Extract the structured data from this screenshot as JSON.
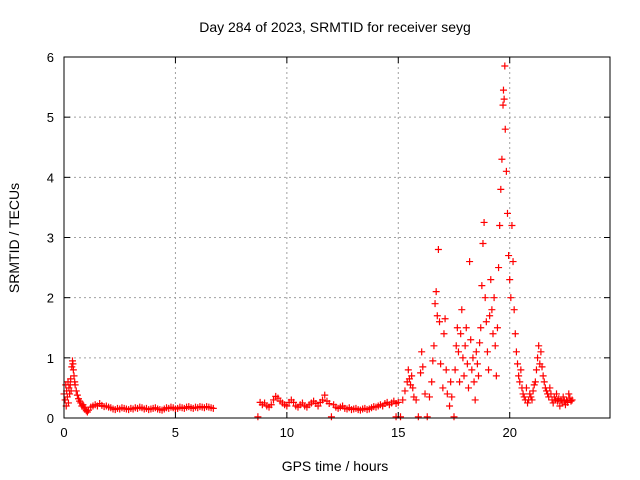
{
  "chart_data": {
    "type": "scatter",
    "title": "Day 284 of 2023, SRMTID for receiver seyg",
    "xlabel": "GPS time / hours",
    "ylabel": "SRMTID / TECUs",
    "xlim": [
      0,
      24.5
    ],
    "ylim": [
      0,
      6
    ],
    "xticks": [
      0,
      5,
      10,
      15,
      20
    ],
    "xtick_labels": [
      "0",
      "5",
      "10",
      "15",
      "20"
    ],
    "yticks": [
      0,
      1,
      2,
      3,
      4,
      5,
      6
    ],
    "ytick_labels": [
      "0",
      "1",
      "2",
      "3",
      "4",
      "5",
      "6"
    ],
    "grid": true,
    "marker": "+",
    "color": "#ff0000",
    "series": [
      {
        "name": "SRMTID",
        "points": [
          [
            0.0,
            0.4
          ],
          [
            0.05,
            0.3
          ],
          [
            0.08,
            0.55
          ],
          [
            0.1,
            0.2
          ],
          [
            0.12,
            0.45
          ],
          [
            0.15,
            0.35
          ],
          [
            0.18,
            0.6
          ],
          [
            0.2,
            0.25
          ],
          [
            0.22,
            0.5
          ],
          [
            0.25,
            0.4
          ],
          [
            0.28,
            0.55
          ],
          [
            0.3,
            0.65
          ],
          [
            0.32,
            0.45
          ],
          [
            0.35,
            0.85
          ],
          [
            0.38,
            0.95
          ],
          [
            0.4,
            0.9
          ],
          [
            0.42,
            0.8
          ],
          [
            0.45,
            0.7
          ],
          [
            0.48,
            0.6
          ],
          [
            0.5,
            0.55
          ],
          [
            0.55,
            0.45
          ],
          [
            0.6,
            0.38
          ],
          [
            0.65,
            0.32
          ],
          [
            0.7,
            0.28
          ],
          [
            0.75,
            0.25
          ],
          [
            0.8,
            0.2
          ],
          [
            0.85,
            0.22
          ],
          [
            0.9,
            0.18
          ],
          [
            0.95,
            0.15
          ],
          [
            1.0,
            0.12
          ],
          [
            1.05,
            0.1
          ],
          [
            1.1,
            0.13
          ],
          [
            1.2,
            0.18
          ],
          [
            1.3,
            0.2
          ],
          [
            1.4,
            0.22
          ],
          [
            1.5,
            0.2
          ],
          [
            1.6,
            0.24
          ],
          [
            1.7,
            0.21
          ],
          [
            1.8,
            0.19
          ],
          [
            1.9,
            0.2
          ],
          [
            2.0,
            0.18
          ],
          [
            2.1,
            0.17
          ],
          [
            2.2,
            0.15
          ],
          [
            2.3,
            0.14
          ],
          [
            2.4,
            0.16
          ],
          [
            2.5,
            0.15
          ],
          [
            2.6,
            0.17
          ],
          [
            2.7,
            0.16
          ],
          [
            2.8,
            0.15
          ],
          [
            2.9,
            0.14
          ],
          [
            3.0,
            0.16
          ],
          [
            3.1,
            0.15
          ],
          [
            3.2,
            0.17
          ],
          [
            3.3,
            0.16
          ],
          [
            3.4,
            0.18
          ],
          [
            3.5,
            0.17
          ],
          [
            3.6,
            0.15
          ],
          [
            3.7,
            0.16
          ],
          [
            3.8,
            0.14
          ],
          [
            3.9,
            0.15
          ],
          [
            4.0,
            0.16
          ],
          [
            4.1,
            0.17
          ],
          [
            4.2,
            0.15
          ],
          [
            4.3,
            0.14
          ],
          [
            4.4,
            0.13
          ],
          [
            4.5,
            0.15
          ],
          [
            4.6,
            0.17
          ],
          [
            4.7,
            0.16
          ],
          [
            4.8,
            0.18
          ],
          [
            4.9,
            0.17
          ],
          [
            5.0,
            0.15
          ],
          [
            5.1,
            0.16
          ],
          [
            5.2,
            0.18
          ],
          [
            5.3,
            0.17
          ],
          [
            5.4,
            0.16
          ],
          [
            5.5,
            0.18
          ],
          [
            5.6,
            0.19
          ],
          [
            5.7,
            0.17
          ],
          [
            5.8,
            0.16
          ],
          [
            5.9,
            0.18
          ],
          [
            6.0,
            0.17
          ],
          [
            6.1,
            0.19
          ],
          [
            6.2,
            0.18
          ],
          [
            6.3,
            0.17
          ],
          [
            6.4,
            0.19
          ],
          [
            6.5,
            0.18
          ],
          [
            6.6,
            0.17
          ],
          [
            6.7,
            0.16
          ],
          [
            8.7,
            0.02
          ],
          [
            8.8,
            0.26
          ],
          [
            8.9,
            0.22
          ],
          [
            9.0,
            0.25
          ],
          [
            9.1,
            0.2
          ],
          [
            9.2,
            0.18
          ],
          [
            9.3,
            0.22
          ],
          [
            9.4,
            0.3
          ],
          [
            9.5,
            0.36
          ],
          [
            9.6,
            0.33
          ],
          [
            9.7,
            0.28
          ],
          [
            9.8,
            0.25
          ],
          [
            9.9,
            0.22
          ],
          [
            10.0,
            0.2
          ],
          [
            10.1,
            0.26
          ],
          [
            10.2,
            0.3
          ],
          [
            10.3,
            0.26
          ],
          [
            10.4,
            0.2
          ],
          [
            10.5,
            0.18
          ],
          [
            10.6,
            0.22
          ],
          [
            10.7,
            0.25
          ],
          [
            10.8,
            0.2
          ],
          [
            10.9,
            0.18
          ],
          [
            11.0,
            0.22
          ],
          [
            11.1,
            0.25
          ],
          [
            11.2,
            0.28
          ],
          [
            11.3,
            0.24
          ],
          [
            11.4,
            0.2
          ],
          [
            11.5,
            0.26
          ],
          [
            11.6,
            0.3
          ],
          [
            11.7,
            0.38
          ],
          [
            11.8,
            0.28
          ],
          [
            11.9,
            0.24
          ],
          [
            12.0,
            0.02
          ],
          [
            12.1,
            0.22
          ],
          [
            12.2,
            0.18
          ],
          [
            12.3,
            0.16
          ],
          [
            12.4,
            0.18
          ],
          [
            12.5,
            0.2
          ],
          [
            12.6,
            0.16
          ],
          [
            12.7,
            0.15
          ],
          [
            12.8,
            0.17
          ],
          [
            12.9,
            0.14
          ],
          [
            13.0,
            0.15
          ],
          [
            13.1,
            0.16
          ],
          [
            13.2,
            0.14
          ],
          [
            13.3,
            0.13
          ],
          [
            13.4,
            0.15
          ],
          [
            13.5,
            0.16
          ],
          [
            13.6,
            0.14
          ],
          [
            13.7,
            0.15
          ],
          [
            13.8,
            0.17
          ],
          [
            13.9,
            0.19
          ],
          [
            14.0,
            0.18
          ],
          [
            14.1,
            0.2
          ],
          [
            14.2,
            0.22
          ],
          [
            14.3,
            0.2
          ],
          [
            14.4,
            0.24
          ],
          [
            14.5,
            0.26
          ],
          [
            14.6,
            0.22
          ],
          [
            14.7,
            0.25
          ],
          [
            14.8,
            0.28
          ],
          [
            14.9,
            0.24
          ],
          [
            15.0,
            0.26
          ],
          [
            14.9,
            0.02
          ],
          [
            15.1,
            0.02
          ],
          [
            15.2,
            0.3
          ],
          [
            15.3,
            0.45
          ],
          [
            15.4,
            0.6
          ],
          [
            15.45,
            0.8
          ],
          [
            15.5,
            0.65
          ],
          [
            15.55,
            0.55
          ],
          [
            15.6,
            0.7
          ],
          [
            15.65,
            0.5
          ],
          [
            15.7,
            0.35
          ],
          [
            15.8,
            0.3
          ],
          [
            15.9,
            0.02
          ],
          [
            16.0,
            0.75
          ],
          [
            16.05,
            1.1
          ],
          [
            16.1,
            0.85
          ],
          [
            16.2,
            0.4
          ],
          [
            16.3,
            0.02
          ],
          [
            16.4,
            0.35
          ],
          [
            16.5,
            0.6
          ],
          [
            16.55,
            0.95
          ],
          [
            16.6,
            1.2
          ],
          [
            16.65,
            1.9
          ],
          [
            16.7,
            2.1
          ],
          [
            16.75,
            1.7
          ],
          [
            16.8,
            2.8
          ],
          [
            16.85,
            1.6
          ],
          [
            16.9,
            0.9
          ],
          [
            17.0,
            0.5
          ],
          [
            17.05,
            1.4
          ],
          [
            17.1,
            1.65
          ],
          [
            17.15,
            0.8
          ],
          [
            17.2,
            0.4
          ],
          [
            17.3,
            0.2
          ],
          [
            17.35,
            0.6
          ],
          [
            17.4,
            0.35
          ],
          [
            17.5,
            0.02
          ],
          [
            17.55,
            0.8
          ],
          [
            17.6,
            1.2
          ],
          [
            17.65,
            1.5
          ],
          [
            17.7,
            1.1
          ],
          [
            17.75,
            0.6
          ],
          [
            17.8,
            1.4
          ],
          [
            17.85,
            1.8
          ],
          [
            17.9,
            1.0
          ],
          [
            17.95,
            0.7
          ],
          [
            18.0,
            1.2
          ],
          [
            18.05,
            1.5
          ],
          [
            18.1,
            0.9
          ],
          [
            18.15,
            0.5
          ],
          [
            18.2,
            2.6
          ],
          [
            18.25,
            1.3
          ],
          [
            18.3,
            0.8
          ],
          [
            18.35,
            1.0
          ],
          [
            18.4,
            0.6
          ],
          [
            18.45,
            0.3
          ],
          [
            18.5,
            1.1
          ],
          [
            18.55,
            0.9
          ],
          [
            18.6,
            0.7
          ],
          [
            18.65,
            1.25
          ],
          [
            18.7,
            1.5
          ],
          [
            18.75,
            2.2
          ],
          [
            18.8,
            2.9
          ],
          [
            18.85,
            3.25
          ],
          [
            18.9,
            2.0
          ],
          [
            18.95,
            1.6
          ],
          [
            19.0,
            1.1
          ],
          [
            19.05,
            0.8
          ],
          [
            19.1,
            1.7
          ],
          [
            19.15,
            2.3
          ],
          [
            19.2,
            1.8
          ],
          [
            19.25,
            1.4
          ],
          [
            19.3,
            2.0
          ],
          [
            19.35,
            1.2
          ],
          [
            19.4,
            0.7
          ],
          [
            19.45,
            1.5
          ],
          [
            19.5,
            2.5
          ],
          [
            19.55,
            3.2
          ],
          [
            19.6,
            3.8
          ],
          [
            19.65,
            4.3
          ],
          [
            19.7,
            5.2
          ],
          [
            19.72,
            5.45
          ],
          [
            19.75,
            5.3
          ],
          [
            19.78,
            5.85
          ],
          [
            19.8,
            4.8
          ],
          [
            19.85,
            4.1
          ],
          [
            19.9,
            3.4
          ],
          [
            19.95,
            2.7
          ],
          [
            20.0,
            2.3
          ],
          [
            20.05,
            2.0
          ],
          [
            20.1,
            3.2
          ],
          [
            20.15,
            2.6
          ],
          [
            20.2,
            1.8
          ],
          [
            20.25,
            1.4
          ],
          [
            20.3,
            1.1
          ],
          [
            20.35,
            0.9
          ],
          [
            20.4,
            0.7
          ],
          [
            20.45,
            0.6
          ],
          [
            20.5,
            0.8
          ],
          [
            20.55,
            0.5
          ],
          [
            20.6,
            0.4
          ],
          [
            20.65,
            0.35
          ],
          [
            20.7,
            0.3
          ],
          [
            20.75,
            0.5
          ],
          [
            20.8,
            0.25
          ],
          [
            20.85,
            0.3
          ],
          [
            20.9,
            0.4
          ],
          [
            20.95,
            0.35
          ],
          [
            21.0,
            0.3
          ],
          [
            21.05,
            0.45
          ],
          [
            21.1,
            0.55
          ],
          [
            21.15,
            0.6
          ],
          [
            21.2,
            0.8
          ],
          [
            21.25,
            1.0
          ],
          [
            21.3,
            1.2
          ],
          [
            21.35,
            0.9
          ],
          [
            21.4,
            1.1
          ],
          [
            21.45,
            0.85
          ],
          [
            21.5,
            0.7
          ],
          [
            21.55,
            0.6
          ],
          [
            21.6,
            0.5
          ],
          [
            21.65,
            0.45
          ],
          [
            21.7,
            0.4
          ],
          [
            21.75,
            0.35
          ],
          [
            21.8,
            0.5
          ],
          [
            21.85,
            0.4
          ],
          [
            21.9,
            0.3
          ],
          [
            21.95,
            0.25
          ],
          [
            22.0,
            0.35
          ],
          [
            22.05,
            0.3
          ],
          [
            22.1,
            0.4
          ],
          [
            22.15,
            0.28
          ],
          [
            22.2,
            0.32
          ],
          [
            22.25,
            0.2
          ],
          [
            22.3,
            0.3
          ],
          [
            22.35,
            0.25
          ],
          [
            22.4,
            0.35
          ],
          [
            22.45,
            0.28
          ],
          [
            22.5,
            0.22
          ],
          [
            22.55,
            0.3
          ],
          [
            22.6,
            0.26
          ],
          [
            22.65,
            0.4
          ],
          [
            22.7,
            0.33
          ],
          [
            22.75,
            0.28
          ],
          [
            22.8,
            0.3
          ]
        ]
      }
    ]
  }
}
